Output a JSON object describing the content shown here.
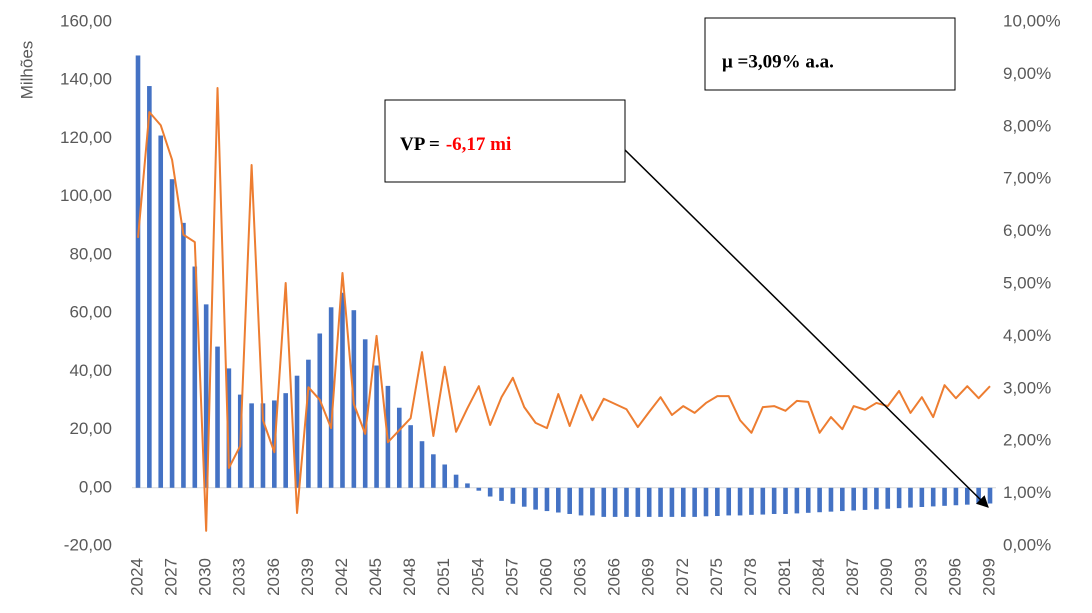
{
  "chart_data": {
    "type": "combo",
    "y_label": "Milhões",
    "categories": [
      "2024",
      null,
      null,
      "2027",
      null,
      null,
      "2030",
      null,
      null,
      "2033",
      null,
      null,
      "2036",
      null,
      null,
      "2039",
      null,
      null,
      "2042",
      null,
      null,
      "2045",
      null,
      null,
      "2048",
      null,
      null,
      "2051",
      null,
      null,
      "2054",
      null,
      null,
      "2057",
      null,
      null,
      "2060",
      null,
      null,
      "2063",
      null,
      null,
      "2066",
      null,
      null,
      "2069",
      null,
      null,
      "2072",
      null,
      null,
      "2075",
      null,
      null,
      "2078",
      null,
      null,
      "2081",
      null,
      null,
      "2084",
      null,
      null,
      "2087",
      null,
      null,
      "2090",
      null,
      null,
      "2093",
      null,
      null,
      "2096",
      null,
      null,
      "2099"
    ],
    "series": [
      {
        "type": "bar",
        "color": "#4472c4",
        "values": [
          148.5,
          138,
          121,
          106,
          91,
          76,
          63,
          48.5,
          41,
          32,
          29,
          29,
          30,
          32.5,
          38.5,
          44,
          53,
          62,
          67,
          61,
          51,
          42,
          35,
          27.5,
          21.5,
          16,
          11.5,
          8,
          4.5,
          1.5,
          -1,
          -3,
          -4.5,
          -5.5,
          -6.5,
          -7.5,
          -8,
          -8.5,
          -9,
          -9.5,
          -9.5,
          -10,
          -10,
          -10,
          -10,
          -10,
          -10,
          -10,
          -10,
          -10,
          -9.8,
          -9.7,
          -9.5,
          -9.5,
          -9.3,
          -9.2,
          -9,
          -9,
          -8.8,
          -8.6,
          -8.4,
          -8.2,
          -8,
          -7.8,
          -7.6,
          -7.4,
          -7.2,
          -7,
          -6.8,
          -6.6,
          -6.4,
          -6.2,
          -6,
          -5.8,
          -5.6,
          -5.4
        ]
      },
      {
        "type": "line",
        "axis": "y2",
        "color": "#ed7d31",
        "values": [
          5.88,
          8.28,
          8.03,
          7.37,
          5.94,
          5.8,
          0.29,
          8.74,
          1.49,
          1.91,
          7.27,
          2.4,
          1.79,
          5.02,
          0.63,
          3.03,
          2.79,
          2.25,
          5.21,
          2.71,
          2.14,
          4.01,
          1.98,
          2.21,
          2.44,
          3.7,
          2.1,
          3.42,
          2.18,
          2.63,
          3.05,
          2.31,
          2.84,
          3.21,
          2.65,
          2.35,
          2.25,
          2.9,
          2.29,
          2.88,
          2.4,
          2.81,
          2.71,
          2.61,
          2.27,
          2.56,
          2.84,
          2.5,
          2.67,
          2.54,
          2.73,
          2.86,
          2.86,
          2.4,
          2.16,
          2.65,
          2.67,
          2.58,
          2.77,
          2.75,
          2.16,
          2.46,
          2.23,
          2.67,
          2.6,
          2.73,
          2.67,
          2.96,
          2.54,
          2.84,
          2.46,
          3.07,
          2.82,
          3.05,
          2.82,
          3.05
        ]
      }
    ],
    "ylim": [
      -20,
      160
    ],
    "yticks": [
      {
        "value": -20,
        "label": "-20,00"
      },
      {
        "value": 0,
        "label": "0,00"
      },
      {
        "value": 20,
        "label": "20,00"
      },
      {
        "value": 40,
        "label": "40,00"
      },
      {
        "value": 60,
        "label": "60,00"
      },
      {
        "value": 80,
        "label": "80,00"
      },
      {
        "value": 100,
        "label": "100,00"
      },
      {
        "value": 120,
        "label": "120,00"
      },
      {
        "value": 140,
        "label": "140,00"
      },
      {
        "value": 160,
        "label": "160,00"
      }
    ],
    "y2lim": [
      0,
      10
    ],
    "y2ticks": [
      {
        "value": 0,
        "label": "0,00%"
      },
      {
        "value": 1,
        "label": "1,00%"
      },
      {
        "value": 2,
        "label": "2,00%"
      },
      {
        "value": 3,
        "label": "3,00%"
      },
      {
        "value": 4,
        "label": "4,00%"
      },
      {
        "value": 5,
        "label": "5,00%"
      },
      {
        "value": 6,
        "label": "6,00%"
      },
      {
        "value": 7,
        "label": "7,00%"
      },
      {
        "value": 8,
        "label": "8,00%"
      },
      {
        "value": 9,
        "label": "9,00%"
      },
      {
        "value": 10,
        "label": "10,00%"
      }
    ],
    "grid": false,
    "annotations": [
      {
        "text": "μ =3,09% a.a."
      },
      {
        "label": "VP =",
        "value": "-6,17 mi",
        "value_color": "#ff0000"
      }
    ]
  }
}
